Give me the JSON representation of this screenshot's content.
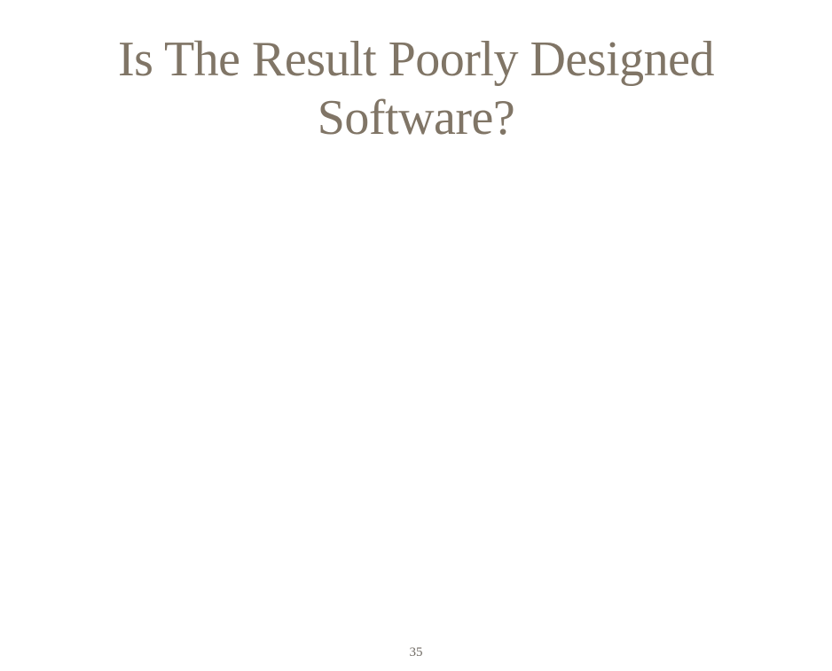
{
  "slide": {
    "title": "Is The Result Poorly Designed Software?",
    "page_number": "35"
  },
  "colors": {
    "background": "#ffffff",
    "title": "#807566",
    "page_number": "#6f6a63"
  }
}
